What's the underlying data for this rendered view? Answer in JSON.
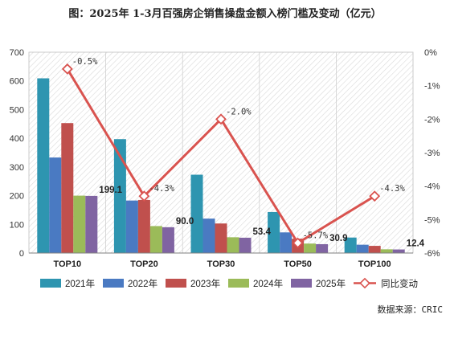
{
  "chart_data": {
    "type": "bar",
    "title": "图：2025年 1-3月百强房企销售操盘金额入榜门槛及变动（亿元）",
    "categories": [
      "TOP10",
      "TOP20",
      "TOP30",
      "TOP50",
      "TOP100"
    ],
    "series": [
      {
        "name": "2021年",
        "color": "#2e95b0",
        "values": [
          609,
          397,
          273,
          143,
          54
        ]
      },
      {
        "name": "2022年",
        "color": "#4a7ac2",
        "values": [
          333,
          183,
          120,
          72,
          29
        ]
      },
      {
        "name": "2023年",
        "color": "#c0504d",
        "values": [
          453,
          185,
          103,
          50,
          25
        ]
      },
      {
        "name": "2024年",
        "color": "#9bbb59",
        "values": [
          200,
          94,
          55,
          33,
          13
        ]
      },
      {
        "name": "2025年",
        "color": "#8064a2",
        "values": [
          199.1,
          90.0,
          53.4,
          30.9,
          12.4
        ]
      }
    ],
    "bar_labels": [
      "199.1",
      "90.0",
      "53.4",
      "30.9",
      "12.4"
    ],
    "line": {
      "name": "同比变动",
      "color": "#d9534f",
      "values": [
        -0.5,
        -4.3,
        -2.0,
        -5.7,
        -4.3
      ],
      "labels": [
        "-0.5%",
        "-4.3%",
        "-2.0%",
        "-5.7%",
        "-4.3%"
      ]
    },
    "y_left": {
      "min": 0,
      "max": 700,
      "ticks": [
        "0",
        "100",
        "200",
        "300",
        "400",
        "500",
        "600",
        "700"
      ]
    },
    "y_right": {
      "min": -6,
      "max": 0,
      "ticks": [
        "0%",
        "-1%",
        "-2%",
        "-3%",
        "-4%",
        "-5%",
        "-6%"
      ]
    },
    "legend_position": "bottom",
    "background": "diagonal-hatch",
    "source": "数据来源：CRIC"
  }
}
